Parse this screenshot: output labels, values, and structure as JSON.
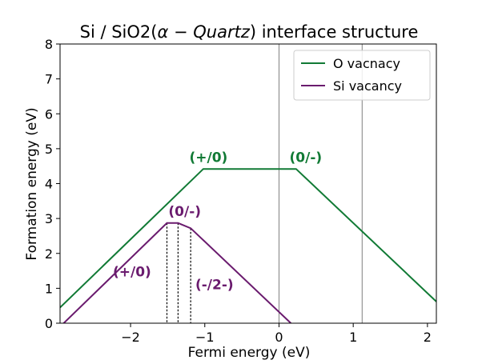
{
  "chart_data": {
    "type": "line",
    "title": "Si / SiO2(α − Quartz) interface structure",
    "title_parts": {
      "prefix": "Si / SiO2(",
      "alpha": "α",
      "minus": " − ",
      "quartz": "Quartz",
      "suffix": ") interface structure"
    },
    "xlabel": "Fermi energy (eV)",
    "ylabel": "Formation energy (eV)",
    "xlim": [
      -2.95,
      2.12
    ],
    "ylim": [
      0,
      8
    ],
    "xticks": [
      -2,
      -1,
      0,
      1,
      2
    ],
    "xtick_labels": [
      "−2",
      "−1",
      "0",
      "1",
      "2"
    ],
    "yticks": [
      0,
      1,
      2,
      3,
      4,
      5,
      6,
      7,
      8
    ],
    "ytick_labels": [
      "0",
      "1",
      "2",
      "3",
      "4",
      "5",
      "6",
      "7",
      "8"
    ],
    "vertical_lines": [
      0,
      1.12
    ],
    "grid": false,
    "legend_placement": "top-right",
    "series": [
      {
        "name": "O vacnacy",
        "color": "#117a35",
        "x": [
          -2.95,
          -1.02,
          0.23,
          2.12
        ],
        "y": [
          0.45,
          4.42,
          4.42,
          0.62
        ]
      },
      {
        "name": "Si vacancy",
        "color": "#6a1b6e",
        "x": [
          -2.95,
          -1.51,
          -1.36,
          -1.19,
          0.16
        ],
        "y": [
          -0.1,
          2.87,
          2.87,
          2.72,
          0.0
        ]
      }
    ],
    "transition_lines": [
      {
        "x": -1.51,
        "y": 2.87
      },
      {
        "x": -1.36,
        "y": 2.87
      },
      {
        "x": -1.19,
        "y": 2.72
      }
    ],
    "annotations": [
      {
        "text": "(+/0)",
        "x": -0.95,
        "y": 4.62,
        "color": "#117a35"
      },
      {
        "text": "(0/-)",
        "x": 0.36,
        "y": 4.62,
        "color": "#117a35"
      },
      {
        "text": "(0/-)",
        "x": -1.27,
        "y": 3.07,
        "color": "#6a1b6e"
      },
      {
        "text": "(+/0)",
        "x": -1.98,
        "y": 1.34,
        "color": "#6a1b6e"
      },
      {
        "text": "(-/2-)",
        "x": -0.87,
        "y": 0.97,
        "color": "#6a1b6e"
      }
    ]
  }
}
